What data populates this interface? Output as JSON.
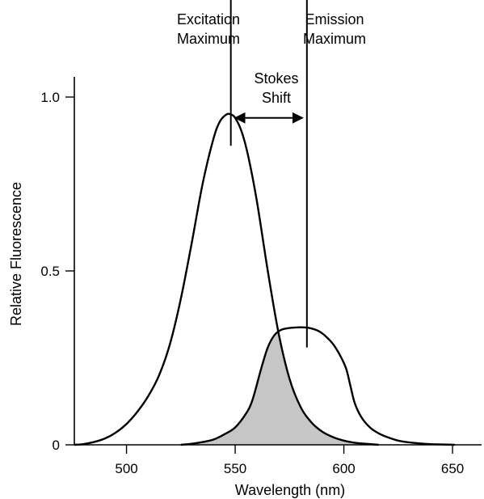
{
  "chart_data": {
    "type": "line",
    "xlabel": "Wavelength (nm)",
    "ylabel": "Relative Fluorescence",
    "xlim": [
      476,
      660
    ],
    "ylim": [
      0,
      1.05
    ],
    "x_ticks": [
      500,
      550,
      600,
      650
    ],
    "y_ticks": [
      {
        "value": 0,
        "label": "0"
      },
      {
        "value": 0.5,
        "label": "0.5"
      },
      {
        "value": 1.0,
        "label": "1.0"
      }
    ],
    "grid": false,
    "series": [
      {
        "key": "excitation",
        "x": [
          476,
          480,
          485,
          490,
          495,
          500,
          505,
          510,
          515,
          520,
          525,
          530,
          535,
          540,
          543,
          546,
          548,
          550,
          553,
          556,
          560,
          565,
          570,
          575,
          580,
          585,
          590,
          595,
          600,
          605,
          610,
          616
        ],
        "y": [
          0.0,
          0.002,
          0.008,
          0.018,
          0.035,
          0.06,
          0.095,
          0.14,
          0.2,
          0.29,
          0.42,
          0.58,
          0.75,
          0.88,
          0.93,
          0.95,
          0.95,
          0.94,
          0.9,
          0.83,
          0.7,
          0.5,
          0.32,
          0.19,
          0.11,
          0.065,
          0.038,
          0.022,
          0.012,
          0.006,
          0.003,
          0.0
        ]
      },
      {
        "key": "emission",
        "x": [
          525,
          530,
          535,
          540,
          545,
          550,
          555,
          558,
          562,
          565,
          568,
          571,
          574,
          577,
          580,
          583,
          586,
          589,
          592,
          595,
          598,
          601,
          603,
          605,
          608,
          612,
          616,
          620,
          625,
          630,
          635,
          640,
          645,
          651
        ],
        "y": [
          0.0,
          0.003,
          0.008,
          0.015,
          0.03,
          0.05,
          0.09,
          0.13,
          0.22,
          0.28,
          0.315,
          0.33,
          0.335,
          0.337,
          0.338,
          0.337,
          0.333,
          0.325,
          0.31,
          0.29,
          0.26,
          0.22,
          0.17,
          0.12,
          0.08,
          0.05,
          0.033,
          0.022,
          0.012,
          0.007,
          0.004,
          0.002,
          0.001,
          0.0
        ]
      }
    ],
    "shaded_overlap": true,
    "annotations": {
      "excitation_max": {
        "x": 548,
        "y_top": 1.34,
        "y_bottom": 0.86,
        "label_lines": [
          "Excitation",
          "Maximum"
        ]
      },
      "emission_max": {
        "x": 583,
        "y_top": 1.34,
        "y_bottom": 0.28,
        "label_lines": [
          "Emission",
          "Maximum"
        ]
      },
      "stokes_shift": {
        "x_from": 550,
        "x_to": 581,
        "y": 0.94,
        "label_lines": [
          "Stokes",
          "Shift"
        ]
      }
    }
  }
}
